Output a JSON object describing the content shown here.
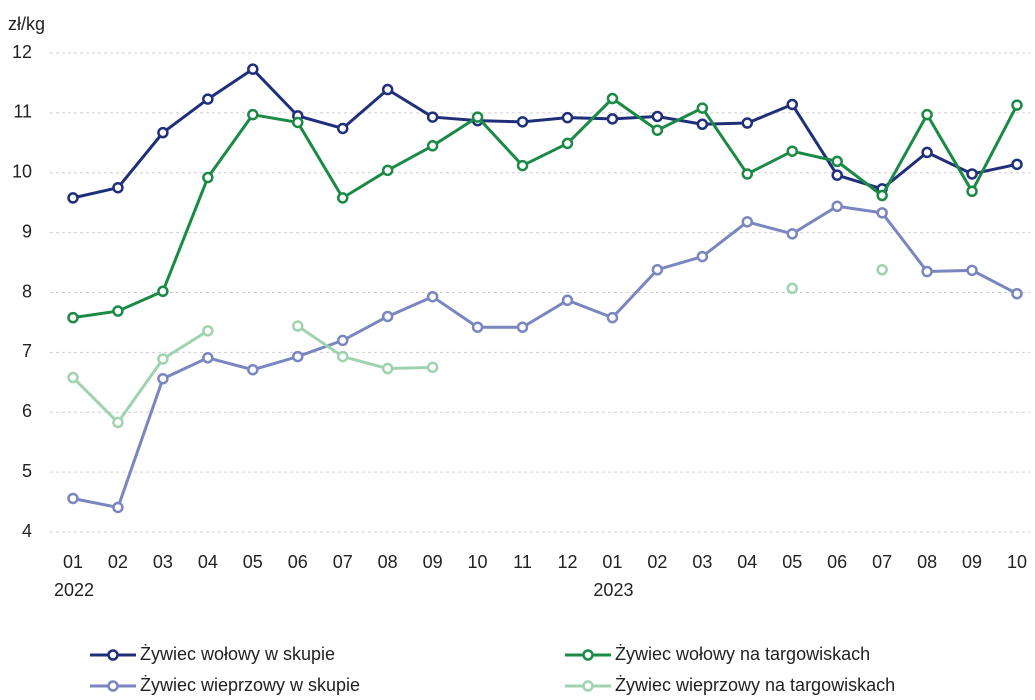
{
  "chart_data": {
    "type": "line",
    "y_label": "zł/kg",
    "categories": [
      "01",
      "02",
      "03",
      "04",
      "05",
      "06",
      "07",
      "08",
      "09",
      "10",
      "11",
      "12",
      "01",
      "02",
      "03",
      "04",
      "05",
      "06",
      "07",
      "08",
      "09",
      "10"
    ],
    "years": [
      "2022",
      null,
      null,
      null,
      null,
      null,
      null,
      null,
      null,
      null,
      null,
      null,
      "2023",
      null,
      null,
      null,
      null,
      null,
      null,
      null,
      null,
      null
    ],
    "series": [
      {
        "name": "Żywiec wołowy w skupie",
        "color": "#1f2f7a",
        "values": [
          9.58,
          9.75,
          10.67,
          11.23,
          11.73,
          10.95,
          10.74,
          11.39,
          10.93,
          10.87,
          10.85,
          10.92,
          10.9,
          10.94,
          10.81,
          10.83,
          11.14,
          9.96,
          9.73,
          10.34,
          9.98,
          10.14
        ]
      },
      {
        "name": "Żywiec wołowy na targowiskach",
        "color": "#1a8a46",
        "values": [
          7.58,
          7.69,
          8.02,
          9.92,
          10.97,
          10.84,
          9.58,
          10.04,
          10.45,
          10.93,
          10.12,
          10.49,
          11.24,
          10.71,
          11.08,
          9.98,
          10.36,
          10.19,
          9.62,
          10.97,
          9.69,
          11.13
        ]
      },
      {
        "name": "Żywiec wieprzowy w skupie",
        "color": "#7a86bf",
        "values": [
          4.56,
          4.41,
          6.56,
          6.91,
          6.71,
          6.93,
          7.2,
          7.6,
          7.93,
          7.42,
          7.42,
          7.87,
          7.58,
          8.38,
          8.6,
          9.18,
          8.98,
          9.44,
          9.33,
          8.35,
          8.37,
          7.98
        ]
      },
      {
        "name": "Żywiec wieprzowy na targowiskach",
        "color": "#9fd3b0",
        "values": [
          6.58,
          5.83,
          6.89,
          7.36,
          null,
          7.44,
          6.93,
          6.73,
          6.75,
          null,
          null,
          null,
          null,
          null,
          null,
          null,
          8.07,
          null,
          8.38,
          null,
          null,
          null
        ]
      }
    ],
    "ylim": [
      4,
      12
    ],
    "yticks": [
      4,
      5,
      6,
      7,
      8,
      9,
      10,
      11,
      12
    ],
    "grid": true,
    "legend": "bottom"
  }
}
